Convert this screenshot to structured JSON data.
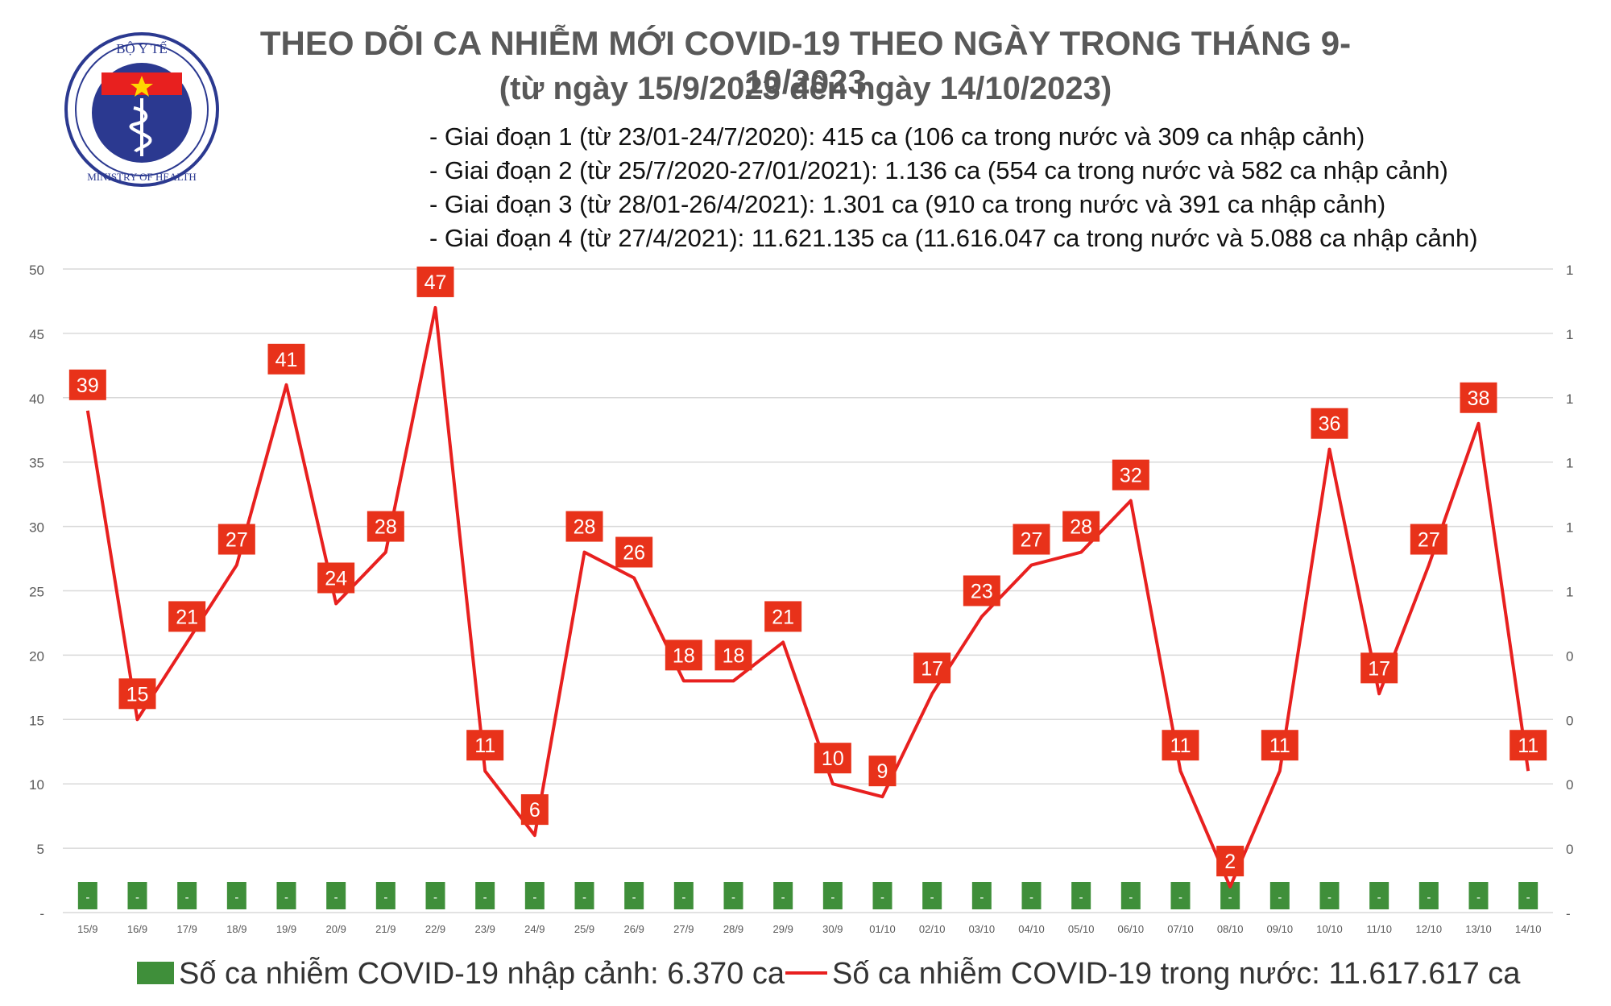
{
  "header": {
    "logo_text_top": "BỘ Y TẾ",
    "logo_text_bottom": "MINISTRY OF HEALTH",
    "title_line1": "THEO DÕI CA NHIỄM MỚI COVID-19 THEO NGÀY TRONG THÁNG 9-10/2023",
    "title_line2": "(từ ngày 15/9/2023 đến ngày 14/10/2023)"
  },
  "notes": [
    "- Giai đoạn 1 (từ 23/01-24/7/2020): 415 ca (106 ca trong nước và 309 ca nhập cảnh)",
    "- Giai đoạn 2 (từ 25/7/2020-27/01/2021): 1.136 ca (554 ca trong nước và 582 ca nhập cảnh)",
    "- Giai đoạn 3 (từ 28/01-26/4/2021): 1.301 ca (910 ca trong nước và 391 ca nhập cảnh)",
    "- Giai đoạn 4 (từ 27/4/2021): 11.621.135 ca (11.616.047 ca trong nước và 5.088 ca nhập cảnh)"
  ],
  "legend": {
    "import_label": "Số ca nhiễm COVID-19 nhập cảnh: 6.370 ca",
    "domestic_label": "Số ca nhiễm COVID-19 trong nước: 11.617.617 ca"
  },
  "colors": {
    "line": "#e8201f",
    "label_bg": "#e8321a",
    "bar": "#3f8f3a",
    "grid": "#d9d9d9",
    "axis_text": "#595959",
    "logo_blue": "#2b3990",
    "logo_red": "#e8201f"
  },
  "chart_data": {
    "type": "line",
    "categories": [
      "15/9",
      "16/9",
      "17/9",
      "18/9",
      "19/9",
      "20/9",
      "21/9",
      "22/9",
      "23/9",
      "24/9",
      "25/9",
      "26/9",
      "27/9",
      "28/9",
      "29/9",
      "30/9",
      "01/10",
      "02/10",
      "03/10",
      "04/10",
      "05/10",
      "06/10",
      "07/10",
      "08/10",
      "09/10",
      "10/10",
      "11/10",
      "12/10",
      "13/10",
      "14/10"
    ],
    "series": [
      {
        "name": "Số ca nhiễm COVID-19 trong nước",
        "type": "line",
        "values": [
          39,
          15,
          21,
          27,
          41,
          24,
          28,
          47,
          11,
          6,
          28,
          26,
          18,
          18,
          21,
          10,
          9,
          17,
          23,
          27,
          28,
          32,
          11,
          2,
          11,
          36,
          17,
          27,
          38,
          11
        ]
      },
      {
        "name": "Số ca nhiễm COVID-19 nhập cảnh",
        "type": "bar",
        "value_labels": [
          "-",
          "-",
          "-",
          "-",
          "-",
          "-",
          "-",
          "-",
          "-",
          "-",
          "-",
          "-",
          "-",
          "-",
          "-",
          "-",
          "-",
          "-",
          "-",
          "-",
          "-",
          "-",
          "-",
          "-",
          "-",
          "-",
          "-",
          "-",
          "-",
          "-"
        ]
      }
    ],
    "y_left_ticks": [
      "-",
      "5",
      "10",
      "15",
      "20",
      "25",
      "30",
      "35",
      "40",
      "45",
      "50"
    ],
    "y_right_ticks": [
      "-",
      "0",
      "0",
      "0",
      "0",
      "1",
      "1",
      "1",
      "1",
      "1",
      "1"
    ],
    "ylim": [
      0,
      50
    ],
    "grid": true,
    "legend_position": "bottom"
  }
}
